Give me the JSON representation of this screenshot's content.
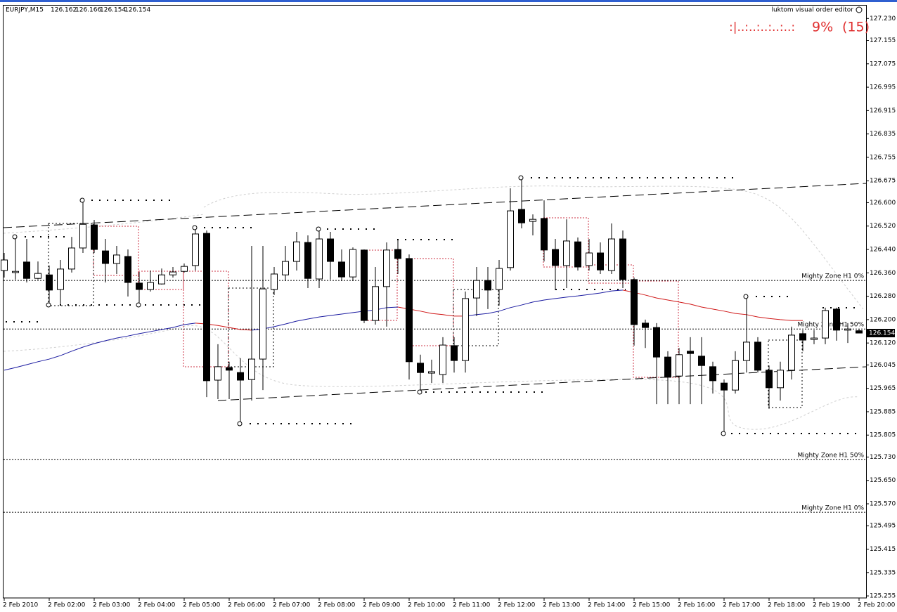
{
  "chart_data": {
    "type": "candlestick",
    "title": "EURJPY,M15",
    "editor_label": "luktom visual order editor",
    "status": [
      ":|..:..:..:..:..:",
      "9%",
      "(15)"
    ],
    "up_color": "#ffffff",
    "down_color": "#000000",
    "categories": [
      "2 Feb 2010",
      null,
      null,
      null,
      "2 Feb 02:00",
      null,
      null,
      null,
      "2 Feb 03:00",
      null,
      null,
      null,
      "2 Feb 04:00",
      null,
      null,
      null,
      "2 Feb 05:00",
      null,
      null,
      null,
      "2 Feb 06:00",
      null,
      null,
      null,
      "2 Feb 07:00",
      null,
      null,
      null,
      "2 Feb 08:00",
      null,
      null,
      null,
      "2 Feb 09:00",
      null,
      null,
      null,
      "2 Feb 10:00",
      null,
      null,
      null,
      "2 Feb 11:00",
      null,
      null,
      null,
      "2 Feb 12:00",
      null,
      null,
      null,
      "2 Feb 13:00",
      null,
      null,
      null,
      "2 Feb 14:00",
      null,
      null,
      null,
      "2 Feb 15:00",
      null,
      null,
      null,
      "2 Feb 16:00",
      null,
      null,
      null,
      "2 Feb 17:00",
      null,
      null,
      null,
      "2 Feb 18:00",
      null,
      null,
      null,
      "2 Feb 19:00",
      null,
      null,
      null,
      "2 Feb 20:00"
    ],
    "open": [
      126.368,
      126.361,
      126.397,
      126.341,
      126.353,
      126.303,
      126.373,
      126.445,
      126.524,
      126.435,
      126.392,
      126.416,
      126.325,
      126.303,
      126.322,
      126.353,
      126.365,
      126.385,
      126.495,
      125.993,
      126.036,
      126.019,
      125.995,
      126.065,
      126.303,
      126.353,
      126.399,
      126.464,
      126.339,
      126.476,
      126.397,
      126.346,
      126.438,
      126.197,
      126.313,
      126.44,
      126.409,
      126.051,
      126.017,
      126.012,
      126.111,
      126.06,
      126.274,
      126.334,
      126.303,
      126.378,
      126.577,
      126.536,
      126.546,
      126.44,
      126.385,
      126.466,
      126.385,
      126.428,
      126.368,
      126.476,
      126.337,
      126.188,
      126.173,
      126.072,
      126.007,
      126.092,
      126.075,
      126.039,
      125.983,
      125.959,
      126.06,
      126.123,
      126.027,
      125.967,
      126.027,
      126.152,
      126.132,
      126.137,
      126.236,
      126.164,
      126.162
    ],
    "high": [
      126.428,
      126.476,
      126.476,
      126.399,
      126.385,
      126.404,
      126.483,
      126.603,
      126.541,
      126.476,
      126.452,
      126.44,
      126.363,
      126.368,
      126.375,
      126.38,
      126.392,
      126.517,
      126.505,
      126.116,
      126.056,
      126.068,
      126.452,
      126.452,
      126.38,
      126.452,
      126.5,
      126.488,
      126.512,
      126.5,
      126.44,
      126.447,
      126.44,
      126.38,
      126.464,
      126.476,
      126.423,
      126.08,
      126.063,
      126.14,
      126.14,
      126.296,
      126.38,
      126.38,
      126.404,
      126.649,
      126.68,
      126.56,
      126.608,
      126.476,
      126.543,
      126.481,
      126.476,
      126.464,
      126.529,
      126.505,
      126.344,
      126.2,
      126.188,
      126.092,
      126.103,
      126.14,
      126.14,
      126.056,
      125.995,
      126.092,
      126.279,
      126.14,
      126.043,
      126.056,
      126.176,
      126.164,
      126.164,
      126.241,
      126.241,
      126.188,
      126.166
    ],
    "low": [
      126.344,
      126.337,
      126.327,
      126.337,
      126.255,
      126.248,
      126.361,
      126.428,
      126.428,
      126.327,
      126.356,
      126.279,
      126.255,
      126.296,
      126.32,
      126.344,
      126.361,
      126.368,
      125.935,
      125.928,
      125.928,
      125.844,
      125.923,
      125.959,
      126.284,
      126.332,
      126.368,
      126.308,
      126.308,
      126.337,
      126.332,
      126.332,
      126.188,
      126.183,
      126.176,
      126.356,
      125.995,
      125.952,
      125.983,
      125.983,
      126.019,
      126.019,
      126.212,
      126.236,
      126.248,
      126.368,
      126.512,
      126.488,
      126.399,
      126.301,
      126.308,
      126.368,
      126.368,
      126.356,
      126.356,
      126.308,
      126.111,
      126.103,
      125.911,
      125.911,
      125.911,
      125.911,
      125.911,
      125.947,
      125.81,
      125.947,
      126.019,
      126.019,
      125.895,
      125.923,
      125.995,
      126.092,
      126.116,
      126.116,
      126.128,
      126.12,
      126.154
    ],
    "close": [
      126.404,
      126.365,
      126.341,
      126.358,
      126.301,
      126.373,
      126.445,
      126.526,
      126.44,
      126.392,
      126.421,
      126.327,
      126.303,
      126.327,
      126.353,
      126.363,
      126.382,
      126.493,
      125.991,
      126.039,
      126.027,
      125.993,
      126.065,
      126.305,
      126.356,
      126.399,
      126.466,
      126.341,
      126.476,
      126.399,
      126.346,
      126.44,
      126.197,
      126.313,
      126.438,
      126.409,
      126.056,
      126.019,
      126.022,
      126.113,
      126.06,
      126.272,
      126.334,
      126.301,
      126.375,
      126.572,
      126.531,
      126.543,
      126.438,
      126.385,
      126.469,
      126.38,
      126.428,
      126.37,
      126.476,
      126.337,
      126.183,
      126.173,
      126.072,
      126.003,
      126.08,
      126.084,
      126.043,
      125.991,
      125.959,
      126.06,
      126.123,
      126.027,
      125.967,
      126.027,
      126.147,
      126.13,
      126.137,
      126.231,
      126.164,
      126.168,
      126.154
    ],
    "series": [
      {
        "color": "#1a1aa0",
        "values": [
          126.027,
          126.036,
          126.046,
          126.056,
          126.065,
          126.077,
          126.092,
          126.106,
          126.118,
          126.128,
          126.137,
          126.144,
          126.152,
          126.159,
          126.166,
          126.173,
          126.183,
          126.188,
          null,
          null,
          null,
          null,
          126.164,
          126.168,
          126.176,
          126.185,
          126.195,
          126.202,
          126.209,
          126.214,
          126.219,
          126.224,
          126.229,
          126.233,
          126.241,
          126.243,
          null,
          null,
          null,
          null,
          null,
          126.212,
          126.217,
          126.221,
          126.229,
          126.241,
          126.25,
          126.26,
          126.267,
          126.272,
          126.277,
          126.281,
          126.286,
          126.291,
          126.298,
          126.301,
          null,
          null,
          null,
          null,
          null,
          null,
          null,
          null,
          null,
          null,
          null,
          null,
          null,
          null,
          null,
          null,
          null,
          null,
          null,
          null,
          null
        ]
      },
      {
        "color": "#d01818",
        "values": [
          null,
          null,
          null,
          null,
          null,
          null,
          null,
          null,
          null,
          null,
          null,
          null,
          null,
          null,
          null,
          null,
          null,
          126.188,
          126.185,
          126.18,
          126.173,
          126.166,
          126.164,
          null,
          null,
          null,
          null,
          null,
          null,
          null,
          null,
          null,
          null,
          null,
          null,
          126.243,
          126.236,
          126.229,
          126.221,
          126.217,
          126.212,
          126.212,
          null,
          null,
          null,
          null,
          null,
          null,
          null,
          null,
          null,
          null,
          null,
          null,
          null,
          126.301,
          126.293,
          126.284,
          126.274,
          126.267,
          126.26,
          126.253,
          126.243,
          126.236,
          126.229,
          126.221,
          126.217,
          126.209,
          126.204,
          126.2,
          126.197,
          126.197,
          null,
          null,
          null,
          null,
          null
        ]
      }
    ],
    "levels": [
      {
        "label": "Mighty Zone H1 0%",
        "value": 126.334
      },
      {
        "label": "Mighty Zone H1 50%",
        "value": 126.168
      },
      {
        "label": "Mighty Zone H1 50%",
        "value": 125.722
      },
      {
        "label": "Mighty Zone H1 0%",
        "value": 125.541
      }
    ],
    "ylim": [
      125.248,
      127.274
    ],
    "yticks": [
      125.255,
      125.335,
      125.415,
      125.495,
      {
        "value": 125.57,
        "label": "125.570"
      },
      {
        "value": 125.65,
        "label": "125.650"
      },
      {
        "value": 125.73,
        "label": "125.730"
      },
      125.805,
      125.885,
      125.965,
      126.045,
      {
        "value": 126.12,
        "label": "126.120"
      },
      {
        "value": 126.2,
        "label": "126.200"
      },
      {
        "value": 126.28,
        "label": "126.280"
      },
      {
        "value": 126.36,
        "label": "126.360"
      },
      {
        "value": 126.44,
        "label": "126.440"
      },
      {
        "value": 126.52,
        "label": "126.520"
      },
      {
        "value": 126.6,
        "label": "126.600"
      },
      126.675,
      126.755,
      126.835,
      126.915,
      126.995,
      127.075,
      127.155,
      {
        "value": 127.23,
        "label": "127.230"
      }
    ],
    "grid": false
  }
}
